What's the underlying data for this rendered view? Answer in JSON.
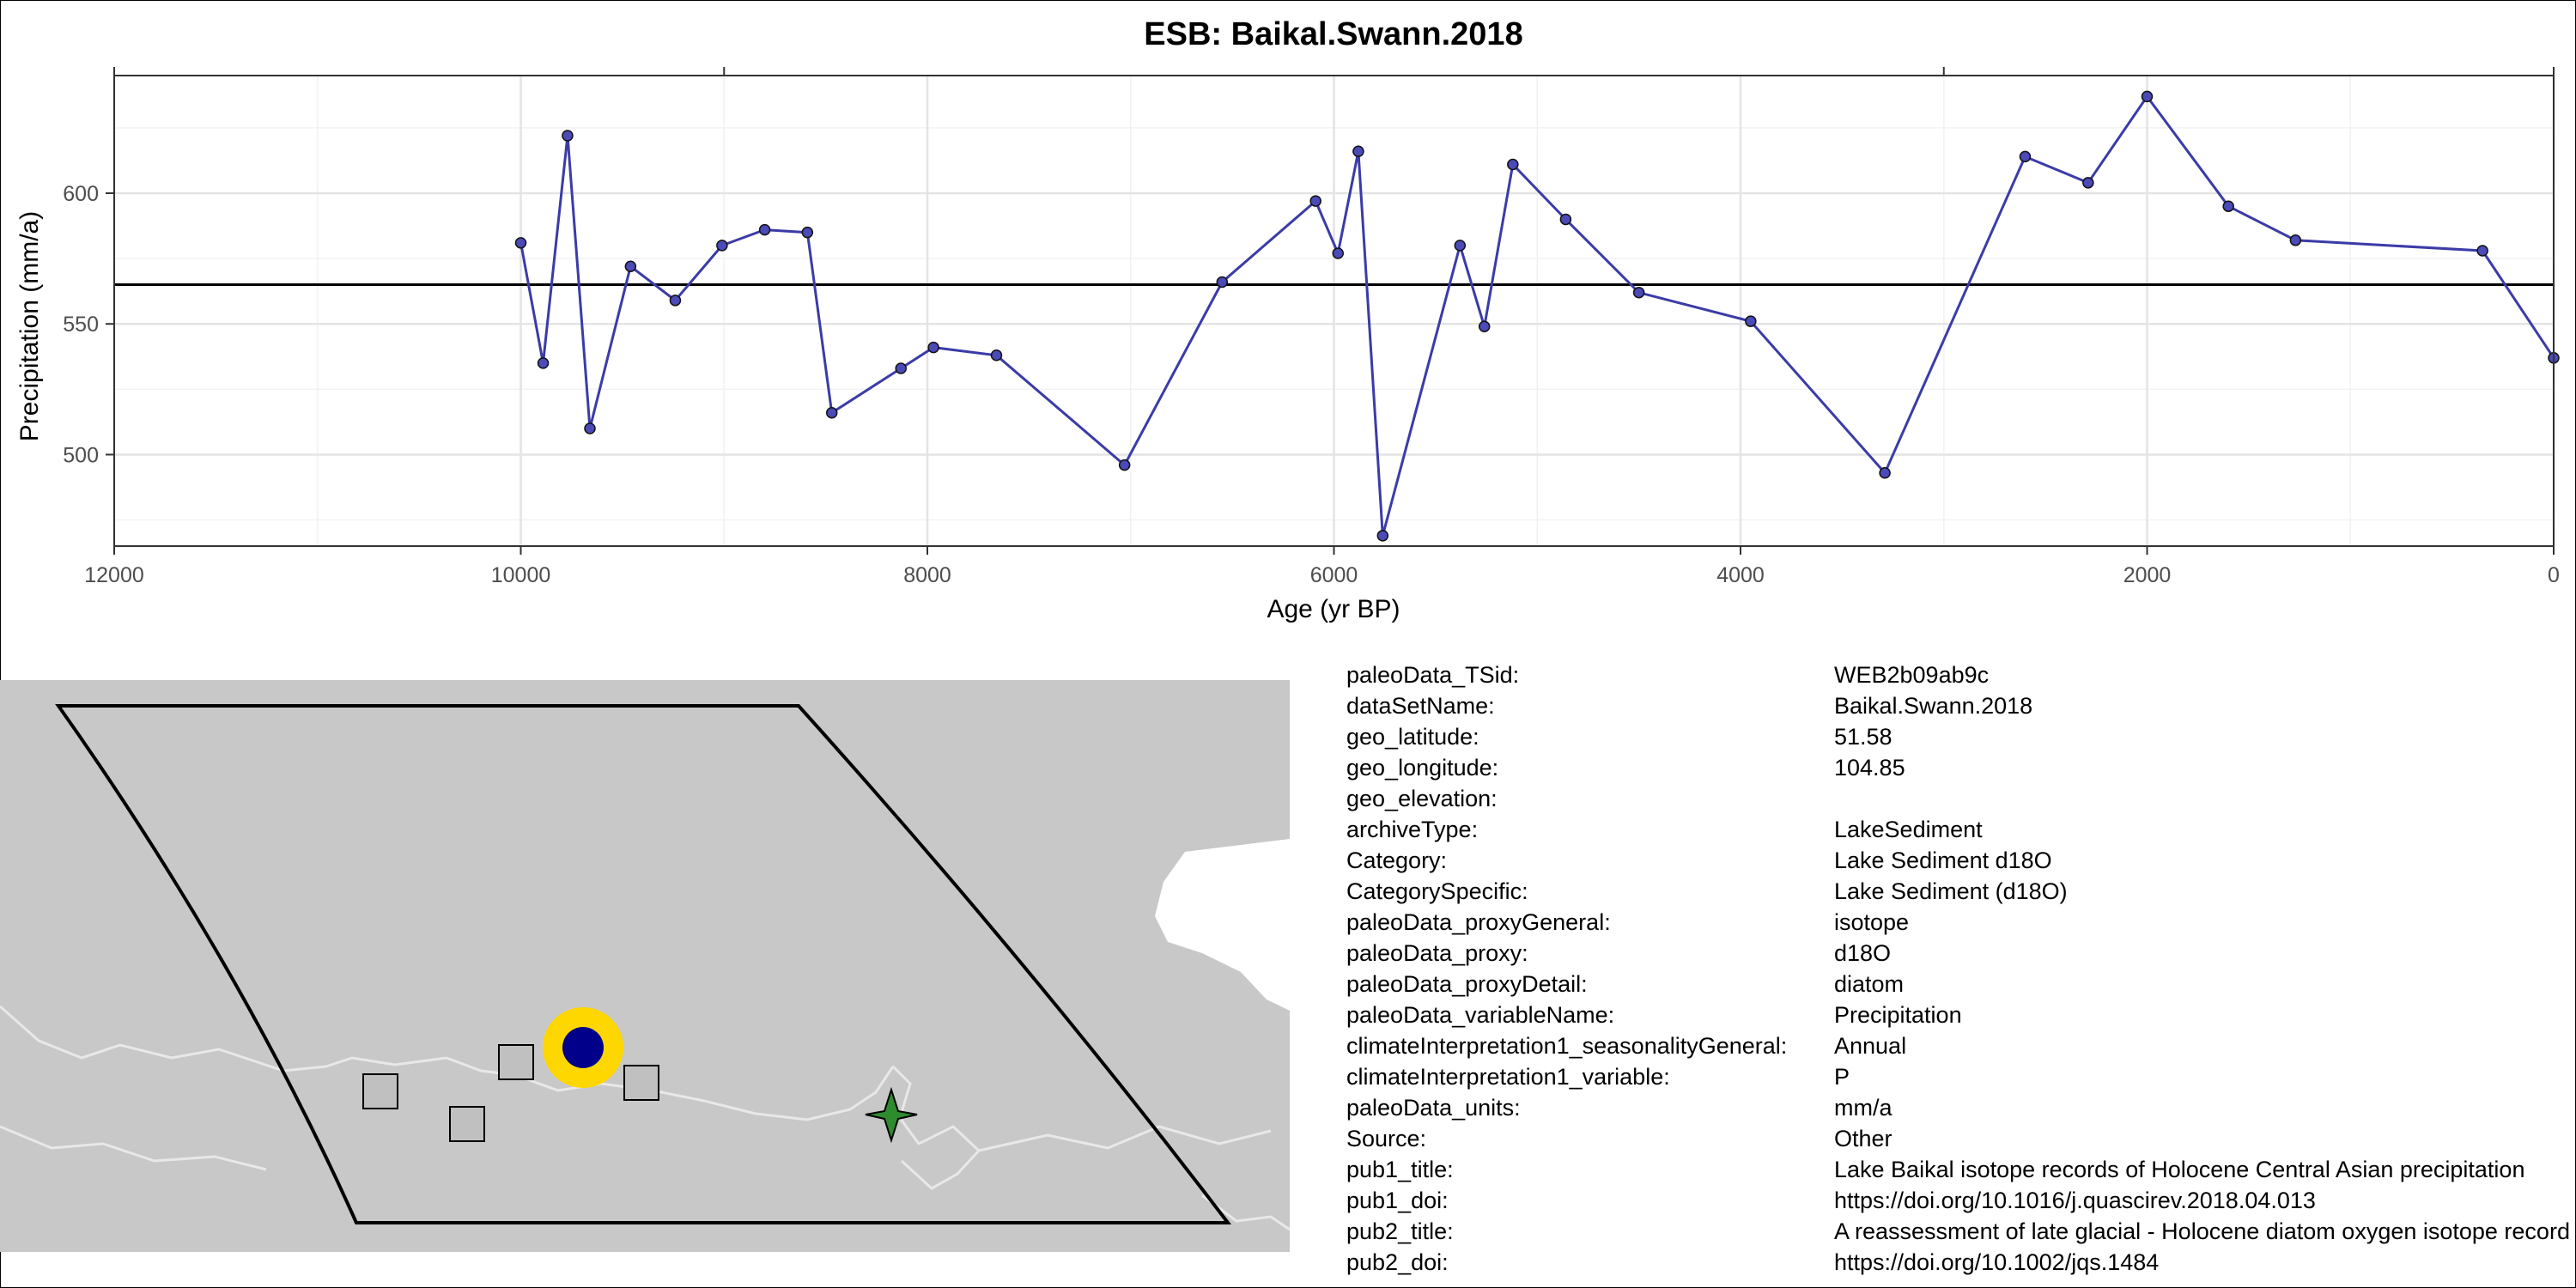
{
  "colors": {
    "series": "#3b3ba8",
    "point_fill": "#4a4ab8",
    "site_marker_outer": "#ffd700",
    "site_marker_inner": "#00008b",
    "map_land": "#c8c8c8",
    "map_boundary": "#e8e8e8",
    "star_marker": "#2e8b2e",
    "square_marker": "#c0c0c0"
  },
  "icons": {
    "site": "target-circle-icon",
    "nearby": "square-marker-icon",
    "other": "four-point-star-icon"
  },
  "chart_data": {
    "type": "line",
    "title": "ESB: Baikal.Swann.2018",
    "xlabel": "Age (yr BP)",
    "ylabel": "Precipitation (mm/a)",
    "xlim": [
      12000,
      0
    ],
    "ylim": [
      465,
      645
    ],
    "x_reversed": true,
    "xticks": [
      12000,
      10000,
      8000,
      6000,
      4000,
      2000,
      0
    ],
    "yticks": [
      500,
      550,
      600
    ],
    "grid": true,
    "mean_line": 565,
    "series": [
      {
        "x": [
          10000,
          9890,
          9770,
          9660,
          9460,
          9240,
          9010,
          8800,
          8590,
          8470,
          8130,
          7970,
          7660,
          7030,
          6550,
          6090,
          5980,
          5880,
          5760,
          5380,
          5260,
          5120,
          4860,
          4500,
          3950,
          3290,
          2600,
          2290,
          2000,
          1600,
          1270,
          350,
          0
        ],
        "y": [
          581,
          535,
          622,
          510,
          572,
          559,
          580,
          586,
          585,
          516,
          533,
          541,
          538,
          496,
          566,
          597,
          577,
          616,
          469,
          580,
          549,
          611,
          590,
          562,
          551,
          493,
          614,
          604,
          637,
          595,
          582,
          578,
          537
        ]
      }
    ]
  },
  "metadata": [
    {
      "key": "paleoData_TSid:",
      "value": "WEB2b09ab9c"
    },
    {
      "key": "dataSetName:",
      "value": "Baikal.Swann.2018"
    },
    {
      "key": "geo_latitude:",
      "value": "51.58"
    },
    {
      "key": "geo_longitude:",
      "value": "104.85"
    },
    {
      "key": "geo_elevation:",
      "value": ""
    },
    {
      "key": "archiveType:",
      "value": "LakeSediment"
    },
    {
      "key": "Category:",
      "value": "Lake Sediment d18O"
    },
    {
      "key": "CategorySpecific:",
      "value": "Lake Sediment (d18O)"
    },
    {
      "key": "paleoData_proxyGeneral:",
      "value": "isotope"
    },
    {
      "key": "paleoData_proxy:",
      "value": "d18O"
    },
    {
      "key": "paleoData_proxyDetail:",
      "value": "diatom"
    },
    {
      "key": "paleoData_variableName:",
      "value": "Precipitation"
    },
    {
      "key": "climateInterpretation1_seasonalityGeneral:",
      "value": "Annual"
    },
    {
      "key": "climateInterpretation1_variable:",
      "value": "P"
    },
    {
      "key": "paleoData_units:",
      "value": "mm/a"
    },
    {
      "key": "Source:",
      "value": "Other"
    },
    {
      "key": "pub1_title:",
      "value": "Lake Baikal isotope records of Holocene Central Asian precipitation"
    },
    {
      "key": "pub1_doi:",
      "value": "https://doi.org/10.1016/j.quascirev.2018.04.013"
    },
    {
      "key": "pub2_title:",
      "value": "A reassessment of late glacial - Holocene diatom oxygen isotope record"
    },
    {
      "key": "pub2_doi:",
      "value": "https://doi.org/10.1002/jqs.1484"
    }
  ]
}
